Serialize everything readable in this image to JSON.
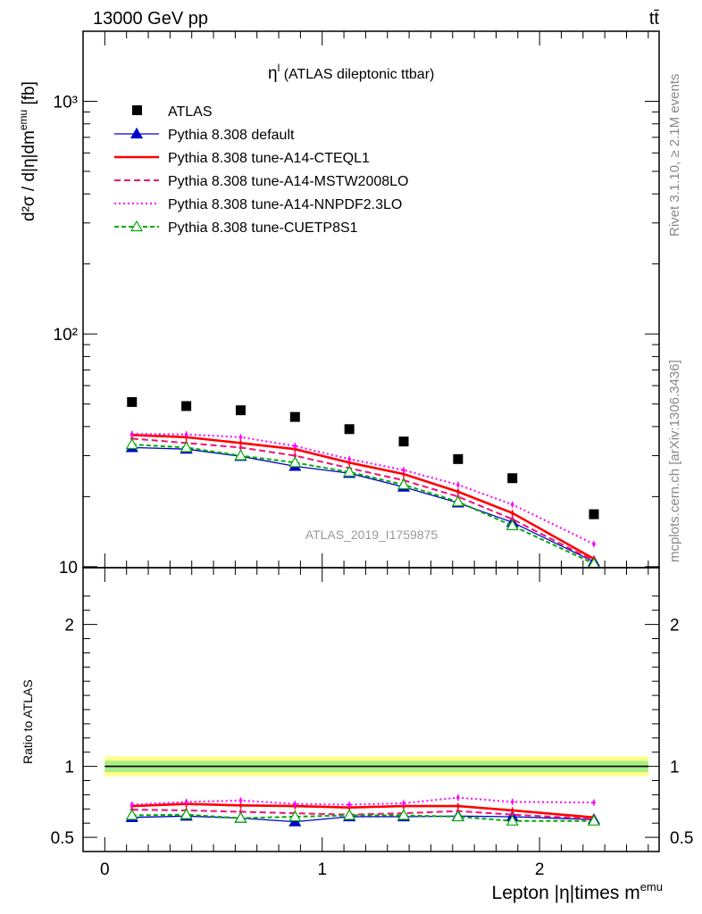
{
  "header": {
    "left": "13000 GeV pp",
    "right": "tt̄"
  },
  "main_plot": {
    "title_var": "η",
    "title_sup": "l",
    "title_rest": " (ATLAS dileptonic ttbar)",
    "ylabel": "d²σ / d|η|dm",
    "ylabel_sup": "emu",
    "ylabel_unit": " [fb]",
    "watermark": "ATLAS_2019_I1759875"
  },
  "ratio_plot": {
    "ylabel": "Ratio to ATLAS"
  },
  "xaxis": {
    "label_main": "Lepton |η|times m",
    "label_sup": "emu"
  },
  "side_texts": {
    "rivet": "Rivet 3.1.10, ≥ 2.1M events",
    "mcplots": "mcplots.cern.ch [arXiv:1306.3436]"
  },
  "legend": [
    {
      "label": "ATLAS",
      "color": "#000000",
      "style": "marker-square"
    },
    {
      "label": "Pythia 8.308 default",
      "color": "#0000cc",
      "style": "solid-triangle"
    },
    {
      "label": "Pythia 8.308 tune-A14-CTEQL1",
      "color": "#ff0000",
      "style": "solid-thick"
    },
    {
      "label": "Pythia 8.308 tune-A14-MSTW2008LO",
      "color": "#ee1177",
      "style": "dashed"
    },
    {
      "label": "Pythia 8.308 tune-A14-NNPDF2.3LO",
      "color": "#ff00ff",
      "style": "dotted"
    },
    {
      "label": "Pythia 8.308 tune-CUETP8S1",
      "color": "#00aa00",
      "style": "dashed-open-triangle"
    }
  ],
  "chart_data": [
    {
      "type": "line",
      "yscale": "log",
      "xlim": [
        -0.1,
        2.55
      ],
      "ylim": [
        9.9,
        2000
      ],
      "x": [
        0.125,
        0.375,
        0.625,
        0.875,
        1.125,
        1.375,
        1.625,
        1.875,
        2.25
      ],
      "x_ticks": [
        "0",
        "1",
        "2"
      ],
      "y_ticks": [
        "10",
        "10²",
        "10³"
      ],
      "series": [
        {
          "name": "ATLAS",
          "color": "#000000",
          "values": [
            51,
            49,
            47,
            44,
            39,
            34.5,
            29,
            24,
            16.8
          ]
        },
        {
          "name": "Pythia 8.308 default",
          "color": "#0000cc",
          "values": [
            32.5,
            32,
            29.8,
            27,
            25.2,
            22,
            18.8,
            15.5,
            10.5
          ]
        },
        {
          "name": "Pythia 8.308 tune-A14-CTEQL1",
          "color": "#ff0000",
          "values": [
            36.8,
            36,
            34,
            32,
            28,
            25,
            21,
            17,
            10.8
          ]
        },
        {
          "name": "Pythia 8.308 tune-A14-MSTW2008LO",
          "color": "#ee1177",
          "values": [
            35.5,
            34,
            32.5,
            30,
            26.5,
            23.5,
            20,
            16,
            10.6
          ]
        },
        {
          "name": "Pythia 8.308 tune-A14-NNPDF2.3LO",
          "color": "#ff00ff",
          "values": [
            37.2,
            37,
            36,
            33,
            29,
            26,
            22.5,
            18.5,
            12.5
          ]
        },
        {
          "name": "Pythia 8.308 tune-CUETP8S1",
          "color": "#00aa00",
          "values": [
            33.5,
            32.5,
            30,
            28,
            25.5,
            22.5,
            19,
            15,
            10.3
          ]
        }
      ]
    },
    {
      "type": "line",
      "ylabel": "Ratio to ATLAS",
      "xlim": [
        -0.1,
        2.55
      ],
      "ylim": [
        0.4,
        2.4
      ],
      "x": [
        0.125,
        0.375,
        0.625,
        0.875,
        1.125,
        1.375,
        1.625,
        1.875,
        2.25
      ],
      "y_ticks": [
        "0.5",
        "1",
        "2"
      ],
      "reference_band": {
        "center": 1.0,
        "inner": [
          0.96,
          1.04
        ],
        "outer": [
          0.93,
          1.07
        ]
      },
      "series": [
        {
          "name": "Pythia 8.308 default",
          "color": "#0000cc",
          "values": [
            0.64,
            0.65,
            0.635,
            0.61,
            0.645,
            0.645,
            0.65,
            0.645,
            0.625
          ]
        },
        {
          "name": "Pythia 8.308 tune-A14-CTEQL1",
          "color": "#ff0000",
          "values": [
            0.72,
            0.735,
            0.725,
            0.72,
            0.71,
            0.72,
            0.72,
            0.69,
            0.64
          ]
        },
        {
          "name": "Pythia 8.308 tune-A14-MSTW2008LO",
          "color": "#ee1177",
          "values": [
            0.695,
            0.69,
            0.68,
            0.67,
            0.66,
            0.67,
            0.685,
            0.66,
            0.63
          ]
        },
        {
          "name": "Pythia 8.308 tune-A14-NNPDF2.3LO",
          "color": "#ff00ff",
          "values": [
            0.73,
            0.75,
            0.76,
            0.735,
            0.73,
            0.74,
            0.78,
            0.75,
            0.745
          ]
        },
        {
          "name": "Pythia 8.308 tune-CUETP8S1",
          "color": "#00aa00",
          "values": [
            0.655,
            0.66,
            0.635,
            0.645,
            0.655,
            0.655,
            0.645,
            0.615,
            0.615
          ]
        }
      ]
    }
  ]
}
